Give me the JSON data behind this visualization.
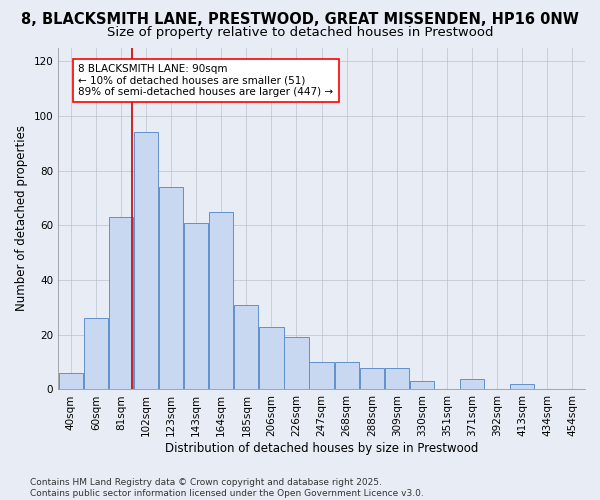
{
  "title": "8, BLACKSMITH LANE, PRESTWOOD, GREAT MISSENDEN, HP16 0NW",
  "subtitle": "Size of property relative to detached houses in Prestwood",
  "xlabel": "Distribution of detached houses by size in Prestwood",
  "ylabel": "Number of detached properties",
  "categories": [
    "40sqm",
    "60sqm",
    "81sqm",
    "102sqm",
    "123sqm",
    "143sqm",
    "164sqm",
    "185sqm",
    "206sqm",
    "226sqm",
    "247sqm",
    "268sqm",
    "288sqm",
    "309sqm",
    "330sqm",
    "351sqm",
    "371sqm",
    "392sqm",
    "413sqm",
    "434sqm",
    "454sqm"
  ],
  "values": [
    6,
    26,
    63,
    94,
    74,
    61,
    65,
    31,
    23,
    19,
    10,
    10,
    8,
    8,
    3,
    0,
    4,
    0,
    2,
    0,
    0
  ],
  "bar_color": "#c8d8f0",
  "bar_edge_color": "#6090cc",
  "grid_color": "#b0b8c8",
  "background_color": "#e8edf5",
  "ylim": [
    0,
    125
  ],
  "yticks": [
    0,
    20,
    40,
    60,
    80,
    100,
    120
  ],
  "vline_color": "#cc0000",
  "annotation_text": "8 BLACKSMITH LANE: 90sqm\n← 10% of detached houses are smaller (51)\n89% of semi-detached houses are larger (447) →",
  "footer_text": "Contains HM Land Registry data © Crown copyright and database right 2025.\nContains public sector information licensed under the Open Government Licence v3.0.",
  "title_fontsize": 10.5,
  "subtitle_fontsize": 9.5,
  "axis_label_fontsize": 8.5,
  "tick_fontsize": 7.5,
  "annotation_fontsize": 7.5,
  "footer_fontsize": 6.5
}
